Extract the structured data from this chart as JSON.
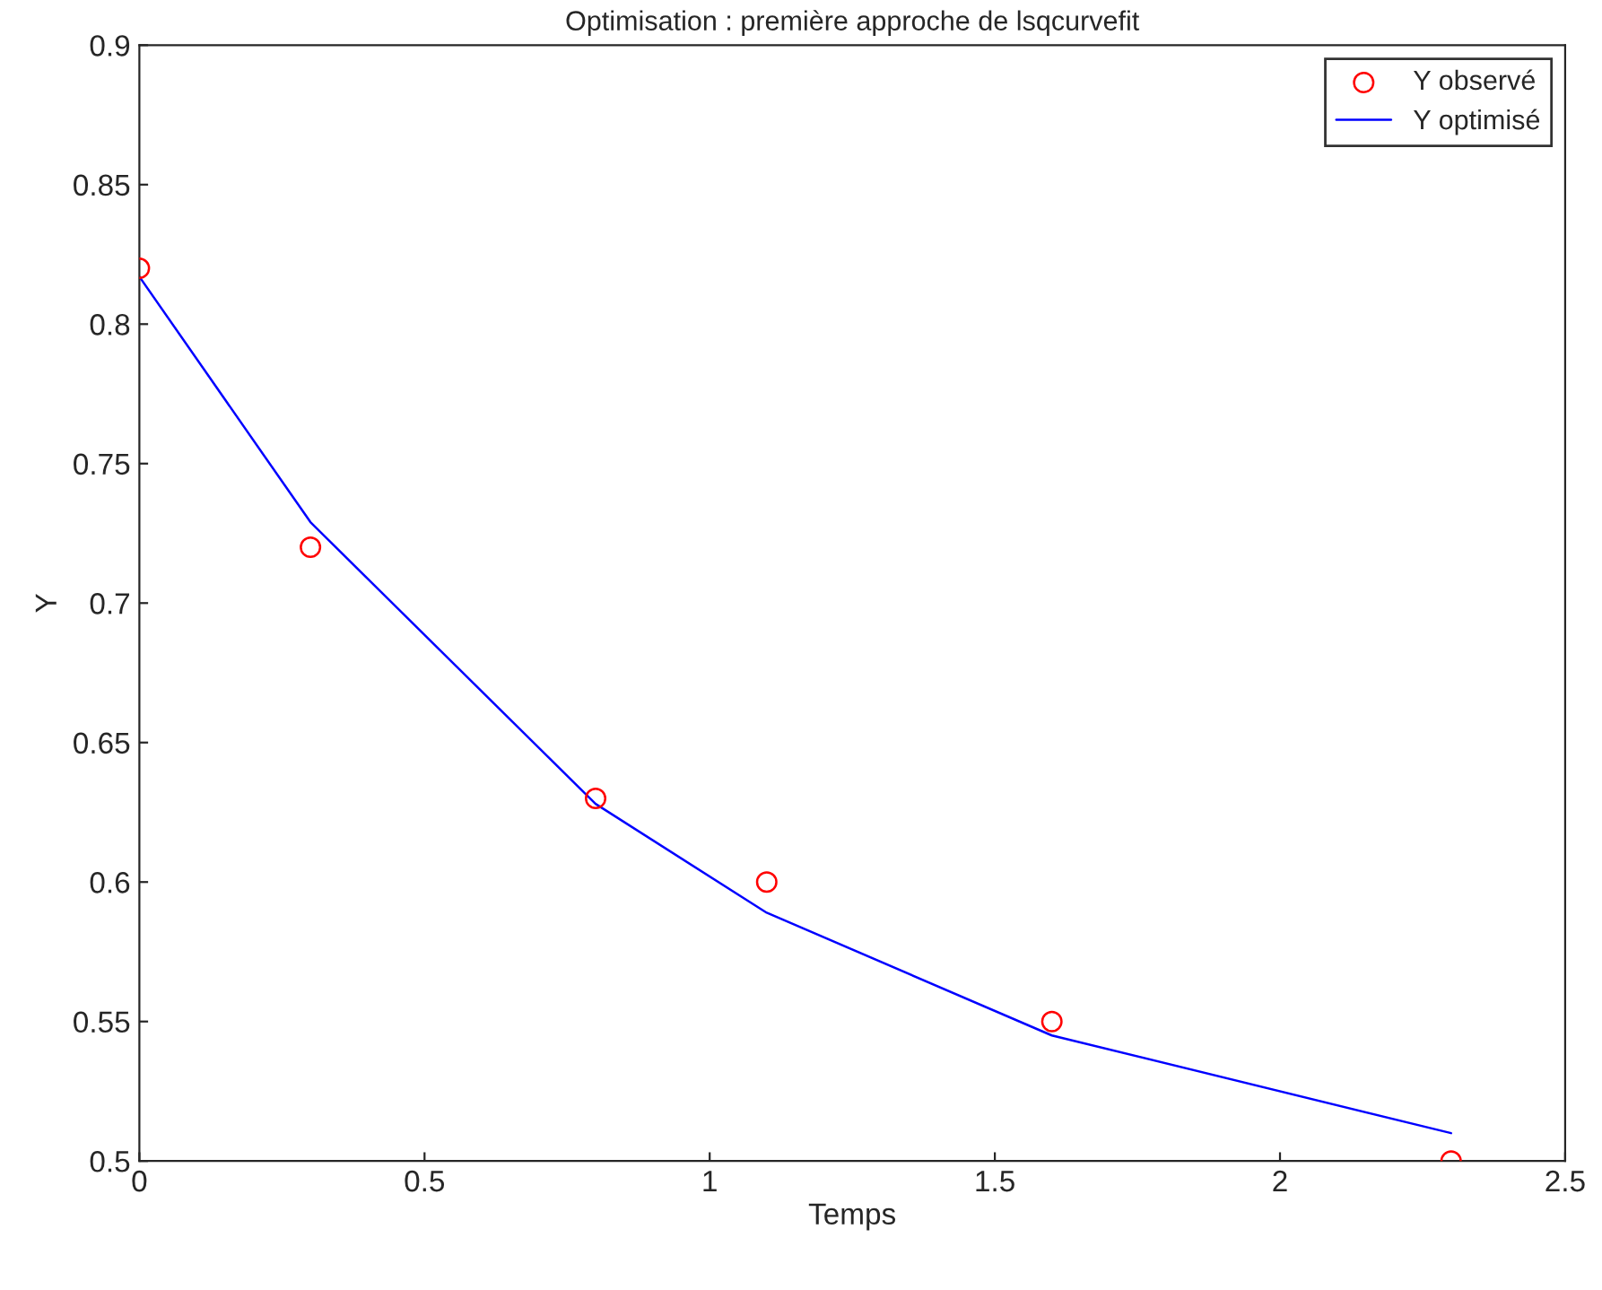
{
  "chart_data": {
    "type": "line",
    "title": "Optimisation : première approche de lsqcurvefit",
    "xlabel": "Temps",
    "ylabel": "Y",
    "x": [
      0,
      0.3,
      0.8,
      1.1,
      1.6,
      2.3
    ],
    "series": [
      {
        "name": "Y observé",
        "type": "scatter",
        "color": "#ff0000",
        "marker": "circle",
        "values": [
          0.82,
          0.72,
          0.63,
          0.6,
          0.55,
          0.5
        ]
      },
      {
        "name": "Y optimisé",
        "color": "#0000ff",
        "line_style": "solid",
        "values": [
          0.817,
          0.729,
          0.628,
          0.589,
          0.545,
          0.51
        ]
      }
    ],
    "xlim": [
      0,
      2.5
    ],
    "xticks": [
      0,
      0.5,
      1,
      1.5,
      2,
      2.5
    ],
    "ylim": [
      0.5,
      0.9
    ],
    "yticks": [
      0.5,
      0.55,
      0.6,
      0.65,
      0.7,
      0.75,
      0.8,
      0.85,
      0.9
    ],
    "grid": false,
    "legend": "top right"
  }
}
